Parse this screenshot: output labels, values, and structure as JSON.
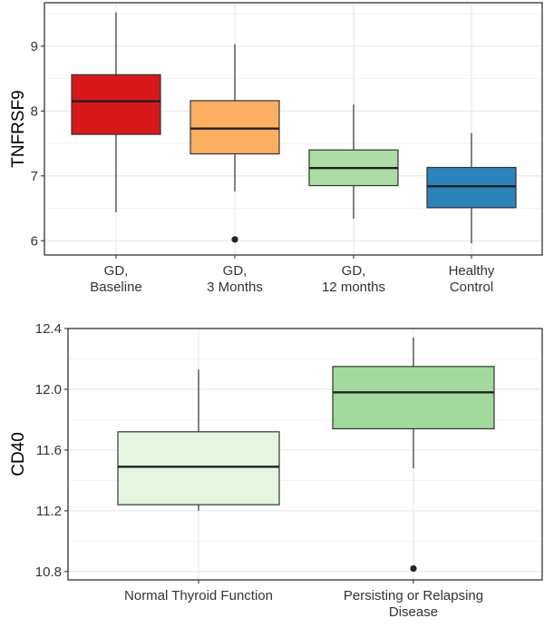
{
  "chart_data": [
    {
      "type": "box",
      "title": "",
      "xlabel": "",
      "ylabel": "TNFRSF9",
      "ylim": [
        5.78,
        9.67
      ],
      "yticks": [
        "6",
        "7",
        "8",
        "9"
      ],
      "grid": true,
      "categories": [
        {
          "lines": [
            "GD,",
            "Baseline"
          ],
          "color": "#d7191c",
          "whisker_high": 9.52,
          "q3": 8.56,
          "median": 8.15,
          "q1": 7.64,
          "whisker_low": 6.44,
          "outliers": []
        },
        {
          "lines": [
            "GD,",
            "3 Months"
          ],
          "color": "#fdae61",
          "whisker_high": 9.03,
          "q3": 8.16,
          "median": 7.73,
          "q1": 7.34,
          "whisker_low": 6.76,
          "outliers": [
            6.02
          ]
        },
        {
          "lines": [
            "GD,",
            "12 months"
          ],
          "color": "#abdda4",
          "whisker_high": 8.1,
          "q3": 7.4,
          "median": 7.12,
          "q1": 6.85,
          "whisker_low": 6.34,
          "outliers": []
        },
        {
          "lines": [
            "Healthy",
            "Control"
          ],
          "color": "#2b83ba",
          "whisker_high": 7.66,
          "q3": 7.13,
          "median": 6.84,
          "q1": 6.51,
          "whisker_low": 5.96,
          "outliers": []
        }
      ]
    },
    {
      "type": "box",
      "title": "",
      "xlabel": "",
      "ylabel": "CD40",
      "ylim": [
        10.745,
        12.4
      ],
      "yticks": [
        "10.8",
        "11.2",
        "11.6",
        "12.0",
        "12.4"
      ],
      "grid": true,
      "categories": [
        {
          "lines": [
            "Normal Thyroid Function"
          ],
          "color": "#e5f5e0",
          "whisker_high": 12.13,
          "q3": 11.72,
          "median": 11.49,
          "q1": 11.24,
          "whisker_low": 11.2,
          "outliers": []
        },
        {
          "lines": [
            "Persisting or Relapsing",
            "Disease"
          ],
          "color": "#a1d99b",
          "whisker_high": 12.34,
          "q3": 12.15,
          "median": 11.98,
          "q1": 11.74,
          "whisker_low": 11.48,
          "outliers": [
            10.82
          ]
        }
      ]
    }
  ]
}
